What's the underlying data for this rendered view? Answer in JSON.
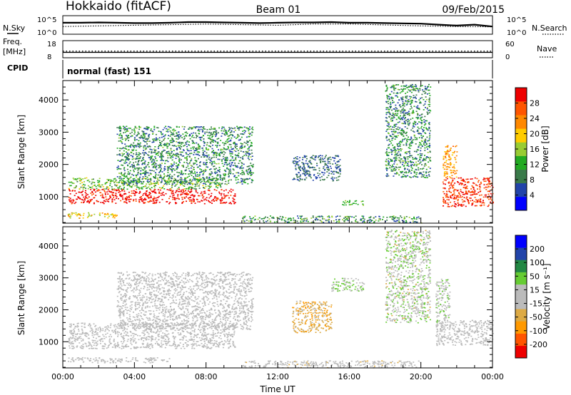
{
  "header": {
    "station": "Hokkaido (fitACF)",
    "beam": "Beam 01",
    "date": "09/Feb/2015"
  },
  "top_panels": {
    "nsky_label": "N.Sky",
    "nsearch_label": "N.Search",
    "noise_ticks": [
      "10^5",
      "10^0"
    ],
    "freq_label": "Freq.",
    "freq_unit": "[MHz]",
    "freq_ticks": [
      "18",
      "8"
    ],
    "nave_label": "Nave",
    "nave_ticks": [
      "60",
      "0"
    ],
    "cpid_label": "CPID",
    "cpid_value": "normal (fast) 151"
  },
  "colors": {
    "power": [
      "#0000ff",
      "#2244aa",
      "#3a7a4a",
      "#22aa22",
      "#99cc33",
      "#ffcc00",
      "#ff8800",
      "#ff5500",
      "#ee0000"
    ],
    "velocity": [
      "#ee0000",
      "#ff5500",
      "#ff9900",
      "#ddaa44",
      "#bbbbbb",
      "#bbbbbb",
      "#66cc33",
      "#228844",
      "#2244aa",
      "#0000ff"
    ]
  },
  "chart_data": [
    {
      "type": "line",
      "panel": "noise",
      "series": [
        {
          "name": "N.Sky",
          "x": [
            0,
            1,
            2,
            3,
            4,
            5,
            6,
            7,
            8,
            9,
            10,
            11,
            12,
            13,
            14,
            15,
            16,
            17,
            18,
            19,
            20,
            21,
            22,
            23,
            24
          ],
          "values": [
            3.2,
            3.2,
            3.3,
            3.2,
            3.1,
            3.1,
            3.2,
            3.4,
            3.4,
            3.3,
            3.2,
            3.1,
            3.2,
            3.3,
            3.3,
            3.4,
            3.2,
            3.2,
            3.1,
            3.0,
            2.9,
            2.6,
            2.3,
            2.6,
            2.0
          ]
        },
        {
          "name": "N.Search",
          "x": [
            0,
            2,
            4,
            6,
            8,
            10,
            12,
            14,
            16,
            18,
            20,
            22,
            24
          ],
          "values": [
            2.0,
            2.2,
            2.4,
            2.6,
            2.8,
            2.6,
            2.4,
            2.8,
            2.8,
            2.5,
            2.2,
            2.0,
            1.9
          ]
        }
      ],
      "xlim": [
        0,
        24
      ],
      "ylim": [
        0,
        5
      ]
    },
    {
      "type": "line",
      "panel": "frequency-nave",
      "series": [
        {
          "name": "Freq.",
          "x": [
            0,
            24
          ],
          "values": [
            10.8,
            10.8
          ]
        },
        {
          "name": "Nave",
          "x": [
            0,
            24
          ],
          "values": [
            22,
            22
          ]
        }
      ],
      "xlim": [
        0,
        24
      ],
      "freq_ylim": [
        8,
        18
      ],
      "nave_ylim": [
        0,
        60
      ]
    },
    {
      "type": "heatmap",
      "panel": "power",
      "ylabel": "Slant Range [km]",
      "colorbar_label": "Power [dB]",
      "colorbar_ticks": [
        4,
        8,
        12,
        16,
        20,
        24,
        28
      ],
      "y_ticks": [
        1000,
        2000,
        3000,
        4000
      ],
      "ylim": [
        180,
        4600
      ],
      "xlim": [
        0,
        24
      ],
      "regions": [
        {
          "t0": 0.3,
          "t1": 9.6,
          "r0": 800,
          "r1": 1250,
          "v0": 26,
          "v1": 29
        },
        {
          "t0": 0.3,
          "t1": 8.8,
          "r0": 1250,
          "r1": 1600,
          "v0": 8,
          "v1": 18
        },
        {
          "t0": 0.2,
          "t1": 3.0,
          "r0": 350,
          "r1": 520,
          "v0": 14,
          "v1": 22
        },
        {
          "t0": 3.0,
          "t1": 10.6,
          "r0": 1400,
          "r1": 3200,
          "v0": 4,
          "v1": 14
        },
        {
          "t0": 12.8,
          "t1": 15.5,
          "r0": 1500,
          "r1": 2300,
          "v0": 4,
          "v1": 10
        },
        {
          "t0": 15.5,
          "t1": 16.8,
          "r0": 750,
          "r1": 900,
          "v0": 10,
          "v1": 14
        },
        {
          "t0": 18.0,
          "t1": 20.5,
          "r0": 1600,
          "r1": 4500,
          "v0": 4,
          "v1": 14
        },
        {
          "t0": 21.2,
          "t1": 24.0,
          "r0": 700,
          "r1": 1600,
          "v0": 24,
          "v1": 29
        },
        {
          "t0": 21.2,
          "t1": 22.0,
          "r0": 1600,
          "r1": 2600,
          "v0": 18,
          "v1": 24
        },
        {
          "t0": 10.0,
          "t1": 20.0,
          "r0": 200,
          "r1": 420,
          "v0": 4,
          "v1": 16
        }
      ]
    },
    {
      "type": "heatmap",
      "panel": "velocity",
      "ylabel": "Slant Range [km]",
      "xlabel": "Time UT",
      "colorbar_label": "Velocity [m s⁻¹]",
      "colorbar_ticks": [
        -200,
        -100,
        -50,
        -15,
        15,
        50,
        100,
        200
      ],
      "y_ticks": [
        1000,
        2000,
        3000,
        4000
      ],
      "x_ticks": [
        "00:00",
        "04:00",
        "08:00",
        "12:00",
        "16:00",
        "20:00",
        "00:00"
      ],
      "x_tick_hours": [
        0,
        4,
        8,
        12,
        16,
        20,
        24
      ],
      "ylim": [
        180,
        4600
      ],
      "xlim": [
        0,
        24
      ],
      "regions": [
        {
          "t0": 0.3,
          "t1": 9.6,
          "r0": 800,
          "r1": 1600,
          "v0": -10,
          "v1": 10
        },
        {
          "t0": 0.2,
          "t1": 6.0,
          "r0": 350,
          "r1": 520,
          "v0": -10,
          "v1": 10
        },
        {
          "t0": 3.0,
          "t1": 10.6,
          "r0": 1400,
          "r1": 3200,
          "v0": -40,
          "v1": 10
        },
        {
          "t0": 12.8,
          "t1": 15.0,
          "r0": 1300,
          "r1": 2300,
          "v0": -120,
          "v1": -30
        },
        {
          "t0": 15.0,
          "t1": 16.8,
          "r0": 2600,
          "r1": 3000,
          "v0": 20,
          "v1": 80
        },
        {
          "t0": 18.0,
          "t1": 20.5,
          "r0": 1600,
          "r1": 4500,
          "v0": -60,
          "v1": 100
        },
        {
          "t0": 20.8,
          "t1": 24.0,
          "r0": 900,
          "r1": 1700,
          "v0": -10,
          "v1": 10
        },
        {
          "t0": 20.8,
          "t1": 21.6,
          "r0": 1600,
          "r1": 3000,
          "v0": 20,
          "v1": 60
        },
        {
          "t0": 10.0,
          "t1": 20.0,
          "r0": 200,
          "r1": 420,
          "v0": -60,
          "v1": 40
        }
      ]
    }
  ]
}
